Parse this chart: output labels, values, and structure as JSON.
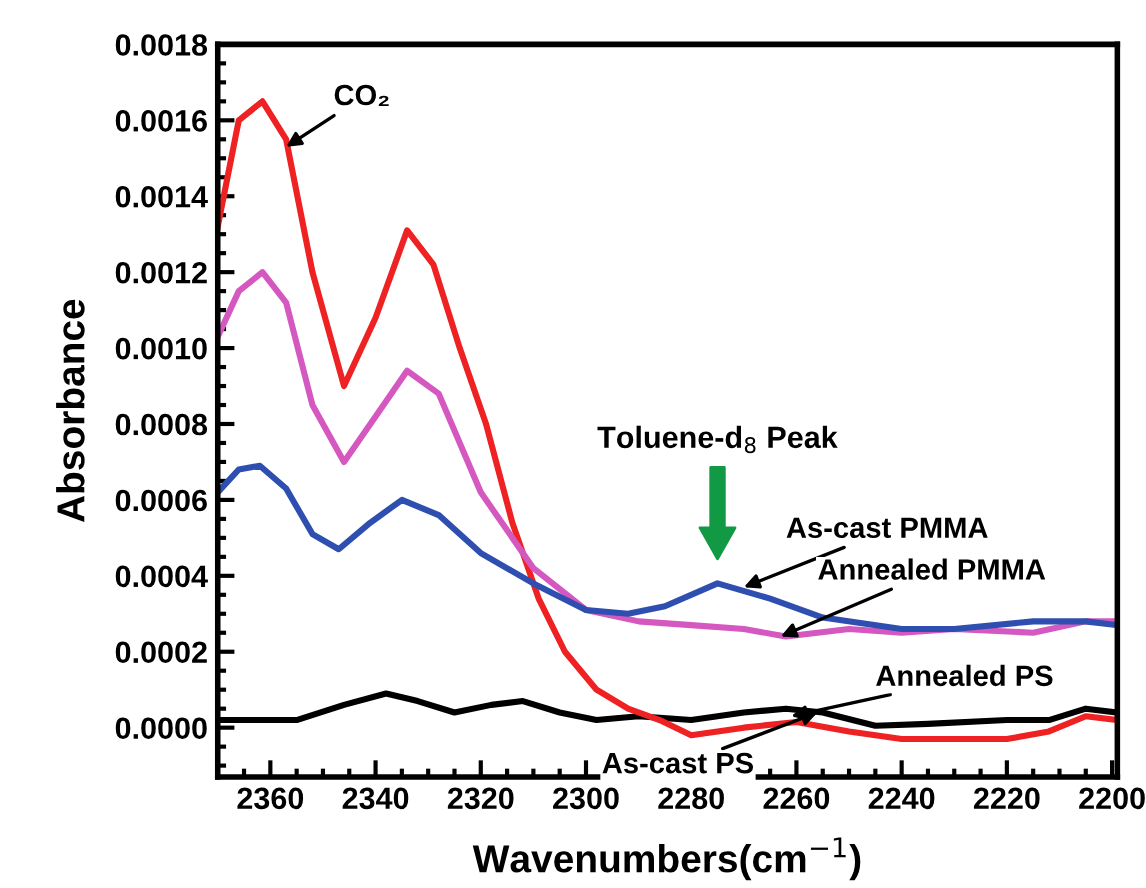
{
  "chart_data": {
    "type": "line",
    "xlabel": "Wavenumbers(cm$^{−1}$)",
    "ylabel": "Absorbance",
    "xlim": [
      2370,
      2199
    ],
    "xticks": [
      2360,
      2340,
      2320,
      2300,
      2280,
      2260,
      2240,
      2220,
      2200
    ],
    "ylim": [
      -0.00013,
      0.0018
    ],
    "yticks": [
      {
        "value": 0,
        "label": "0.0000"
      },
      {
        "value": 0.0002,
        "label": "0.0002"
      },
      {
        "value": 0.0004,
        "label": "0.0004"
      },
      {
        "value": 0.0006,
        "label": "0.0006"
      },
      {
        "value": 0.0008,
        "label": "0.0008"
      },
      {
        "value": 0.001,
        "label": "0.0010"
      },
      {
        "value": 0.0012,
        "label": "0.0012"
      },
      {
        "value": 0.0014,
        "label": "0.0014"
      },
      {
        "value": 0.0016,
        "label": "0.0016"
      },
      {
        "value": 0.0018,
        "label": "0.0018"
      }
    ],
    "grid": false,
    "legend": false,
    "marker": "none",
    "line_style": "solid",
    "series": [
      {
        "color": "#000000",
        "x": [
          2370,
          2355,
          2346,
          2338,
          2332,
          2325,
          2318,
          2312,
          2305,
          2298,
          2290,
          2280,
          2270,
          2262,
          2255,
          2245,
          2235,
          2220,
          2212,
          2205,
          2199
        ],
        "values": [
          2e-05,
          2e-05,
          6e-05,
          9e-05,
          7e-05,
          4e-05,
          6e-05,
          7e-05,
          4e-05,
          2e-05,
          3e-05,
          2e-05,
          4e-05,
          5e-05,
          4e-05,
          5e-06,
          1e-05,
          2e-05,
          2e-05,
          5e-05,
          4e-05
        ]
      },
      {
        "color": "#ee2222",
        "x": [
          2370,
          2366,
          2361.5,
          2357,
          2352,
          2346,
          2340,
          2334,
          2329,
          2324,
          2319,
          2314,
          2309,
          2304,
          2298,
          2292,
          2286,
          2280,
          2270,
          2260,
          2250,
          2240,
          2230,
          2220,
          2212,
          2205,
          2199
        ],
        "values": [
          0.00132,
          0.0016,
          0.00165,
          0.00155,
          0.0012,
          0.0009,
          0.00108,
          0.00131,
          0.00122,
          0.001,
          0.0008,
          0.00054,
          0.00034,
          0.0002,
          0.0001,
          5e-05,
          2e-05,
          -2e-05,
          0.0,
          1.5e-05,
          -1e-05,
          -3e-05,
          -3e-05,
          -3e-05,
          -1e-05,
          3e-05,
          2e-05
        ]
      },
      {
        "color": "#d458c0",
        "x": [
          2370,
          2366,
          2361.5,
          2357,
          2352,
          2346,
          2340,
          2334,
          2328,
          2320,
          2310,
          2300,
          2290,
          2280,
          2270,
          2262,
          2250,
          2240,
          2230,
          2215,
          2205,
          2199
        ],
        "values": [
          0.00103,
          0.00115,
          0.0012,
          0.00112,
          0.00085,
          0.0007,
          0.00082,
          0.00094,
          0.00088,
          0.00062,
          0.00042,
          0.00031,
          0.00028,
          0.00027,
          0.00026,
          0.00024,
          0.00026,
          0.00025,
          0.00026,
          0.00025,
          0.00028,
          0.00028
        ]
      },
      {
        "color": "#2f4fb0",
        "x": [
          2370,
          2366,
          2362,
          2357,
          2352,
          2347,
          2341,
          2335,
          2328,
          2320,
          2310,
          2300,
          2292,
          2285,
          2275,
          2265,
          2255,
          2240,
          2230,
          2215,
          2205,
          2199
        ],
        "values": [
          0.00062,
          0.00068,
          0.00069,
          0.00063,
          0.00051,
          0.00047,
          0.00054,
          0.0006,
          0.00056,
          0.00046,
          0.00038,
          0.00031,
          0.0003,
          0.00032,
          0.00038,
          0.00034,
          0.00029,
          0.00026,
          0.00026,
          0.00028,
          0.00028,
          0.00027
        ]
      }
    ],
    "annotations": [
      {
        "text": "CO₂",
        "x": 2357,
        "y": 0.00153
      },
      "Toluene-d$_{8}$ Peak",
      {
        "text": "As-cast PMMA",
        "x": 2270,
        "y": 0.00037
      },
      {
        "text": "Annealed PMMA",
        "x": 2263,
        "y": 0.00024
      },
      {
        "text": "Annealed PS",
        "x": 2261,
        "y": 3e-05
      },
      {
        "text": "As-cast PS",
        "x": 2256,
        "y": 4e-05
      }
    ]
  }
}
